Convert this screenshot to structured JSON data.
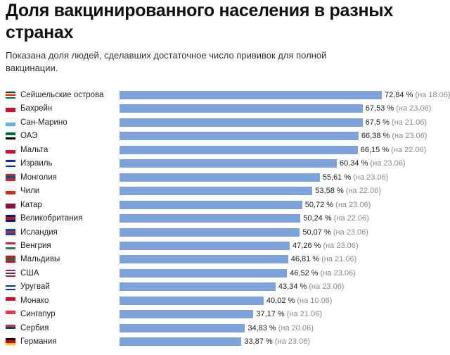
{
  "header": {
    "title": "Доля вакцинированного населения в разных странах",
    "subtitle": "Показана доля людей, сделавших достаточное число прививок для полной вакцинации."
  },
  "colors": {
    "bar": "#7ea3dc",
    "date_text": "#8a8a8a"
  },
  "chart_data": {
    "type": "bar",
    "orientation": "horizontal",
    "unit": "%",
    "xlim": [
      0,
      72.84
    ],
    "categories": [
      "Сейшельские острова",
      "Бахрейн",
      "Сан-Марино",
      "ОАЭ",
      "Мальта",
      "Израиль",
      "Монголия",
      "Чили",
      "Катар",
      "Великобритания",
      "Исландия",
      "Венгрия",
      "Мальдивы",
      "США",
      "Уругвай",
      "Монако",
      "Сингапур",
      "Сербия",
      "Германия"
    ],
    "values": [
      72.84,
      67.53,
      67.5,
      66.38,
      66.15,
      60.34,
      55.61,
      53.58,
      50.72,
      50.24,
      50.07,
      47.26,
      46.81,
      46.52,
      43.34,
      40.02,
      37.17,
      34.83,
      33.87
    ],
    "value_labels": [
      "72,84 %",
      "67,53 %",
      "67,5 %",
      "66,38 %",
      "66,15 %",
      "60,34 %",
      "55,61 %",
      "53,58 %",
      "50,72 %",
      "50,24 %",
      "50,07 %",
      "47,26 %",
      "46,81 %",
      "46,52 %",
      "43,34 %",
      "40,02 %",
      "37,17 %",
      "34,83 %",
      "33,87 %"
    ],
    "dates": [
      "(на 18.06)",
      "(на 23.06)",
      "(на 21.06)",
      "(на 23.06)",
      "(на 22.06)",
      "(на 23.06)",
      "(на 23.06)",
      "(на 22.06)",
      "(на 23.06)",
      "(на 22.06)",
      "(на 23.06)",
      "(на 23.06)",
      "(на 21.06)",
      "(на 23.06)",
      "(на 23.06)",
      "(на 10.06)",
      "(на 21.06)",
      "(на 20.06)",
      "(на 23.06)"
    ]
  },
  "flags": [
    {
      "name": "seychelles-flag-icon",
      "colors": [
        "#003f87",
        "#fcd856",
        "#d62828",
        "#ffffff",
        "#007a3d"
      ]
    },
    {
      "name": "bahrain-flag-icon",
      "colors": [
        "#ffffff",
        "#ce1126",
        "#ce1126"
      ]
    },
    {
      "name": "san-marino-flag-icon",
      "colors": [
        "#ffffff",
        "#5eb6e4"
      ]
    },
    {
      "name": "uae-flag-icon",
      "colors": [
        "#00732f",
        "#ffffff",
        "#000000"
      ]
    },
    {
      "name": "malta-flag-icon",
      "colors": [
        "#ffffff",
        "#cf142b"
      ]
    },
    {
      "name": "israel-flag-icon",
      "colors": [
        "#0038b8",
        "#ffffff",
        "#ffffff",
        "#0038b8"
      ]
    },
    {
      "name": "mongolia-flag-icon",
      "colors": [
        "#c4272f",
        "#015197",
        "#c4272f"
      ]
    },
    {
      "name": "chile-flag-icon",
      "colors": [
        "#ffffff",
        "#d52b1e"
      ]
    },
    {
      "name": "qatar-flag-icon",
      "colors": [
        "#ffffff",
        "#8a1538",
        "#8a1538"
      ]
    },
    {
      "name": "uk-flag-icon",
      "colors": [
        "#012169",
        "#c8102e",
        "#012169"
      ]
    },
    {
      "name": "iceland-flag-icon",
      "colors": [
        "#02529c",
        "#dc1e35",
        "#02529c"
      ]
    },
    {
      "name": "hungary-flag-icon",
      "colors": [
        "#ce2939",
        "#ffffff",
        "#477050"
      ]
    },
    {
      "name": "maldives-flag-icon",
      "colors": [
        "#d21034",
        "#007e3a",
        "#d21034"
      ]
    },
    {
      "name": "usa-flag-icon",
      "colors": [
        "#b22234",
        "#ffffff",
        "#3c3b6e",
        "#ffffff",
        "#b22234"
      ]
    },
    {
      "name": "uruguay-flag-icon",
      "colors": [
        "#ffffff",
        "#0038a8",
        "#ffffff",
        "#0038a8"
      ]
    },
    {
      "name": "monaco-flag-icon",
      "colors": [
        "#ce1126",
        "#ffffff"
      ]
    },
    {
      "name": "singapore-flag-icon",
      "colors": [
        "#ef3340",
        "#ffffff"
      ]
    },
    {
      "name": "serbia-flag-icon",
      "colors": [
        "#c6363c",
        "#0c4076",
        "#ffffff"
      ]
    },
    {
      "name": "germany-flag-icon",
      "colors": [
        "#000000",
        "#dd0000",
        "#ffce00"
      ]
    }
  ]
}
